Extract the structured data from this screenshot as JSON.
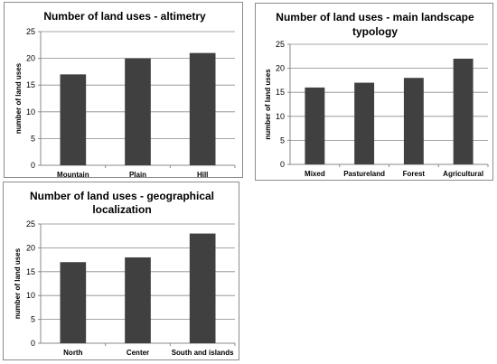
{
  "colors": {
    "bar": "#404040",
    "grid": "#8a8a8a",
    "border": "#8c8c8c"
  },
  "chart_data": [
    {
      "type": "bar",
      "title": "Number of land uses - altimetry",
      "ylabel": "number of land uses",
      "categories": [
        "Mountain",
        "Plain",
        "Hill"
      ],
      "values": [
        17,
        20,
        21
      ],
      "ylim": [
        0,
        25
      ],
      "yticks": [
        0,
        5,
        10,
        15,
        20,
        25
      ],
      "grid": true
    },
    {
      "type": "bar",
      "title": "Number of land uses - main landscape typology",
      "ylabel": "number of land uses",
      "categories": [
        "Mixed",
        "Pastureland",
        "Forest",
        "Agricultural"
      ],
      "values": [
        16,
        17,
        18,
        22
      ],
      "ylim": [
        0,
        25
      ],
      "yticks": [
        0,
        5,
        10,
        15,
        20,
        25
      ],
      "grid": true
    },
    {
      "type": "bar",
      "title": "Number of land uses - geographical localization",
      "ylabel": "number of land uses",
      "categories": [
        "North",
        "Center",
        "South and islands"
      ],
      "values": [
        17,
        18,
        23
      ],
      "ylim": [
        0,
        25
      ],
      "yticks": [
        0,
        5,
        10,
        15,
        20,
        25
      ],
      "grid": true
    }
  ]
}
